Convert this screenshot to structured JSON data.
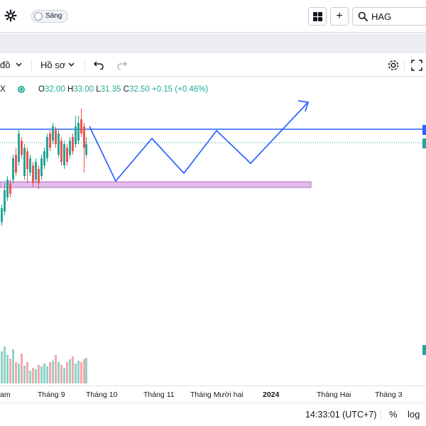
{
  "topbar": {
    "theme_toggle_label": "Sáng",
    "search_value": "HAG",
    "add_label": "+"
  },
  "toolbar": {
    "chart_type_label": "đồ",
    "profile_label": "Hồ sơ",
    "chevron": "⌄"
  },
  "legend": {
    "symbol": "X",
    "open_label": "O",
    "open": "32.00",
    "high_label": "H",
    "high": "33.00",
    "low_label": "L",
    "low": "31.35",
    "close_label": "C",
    "close": "32.50",
    "change": "+0.15 (+0.46%)"
  },
  "x_axis": {
    "labels": [
      "am",
      "Tháng 9",
      "Tháng 10",
      "Tháng 11",
      "Tháng Mười hai",
      "2024",
      "Tháng Hai",
      "Tháng 3"
    ],
    "bold_label": "2024"
  },
  "status": {
    "time": "14:33:01 (UTC+7)",
    "percent_label": "%",
    "log_label": "log"
  },
  "colors": {
    "up": "#26a69a",
    "down": "#ef5350",
    "drawing": "#2962ff",
    "zone_fill": "#e1bee7",
    "zone_border": "#ba68c8",
    "price_line": "#26a69a"
  },
  "icons": {
    "settings": "gear-icon",
    "layout": "grid-icon",
    "search": "search-icon",
    "undo": "undo-icon",
    "redo": "redo-icon",
    "fullscreen": "fullscreen-icon"
  }
}
